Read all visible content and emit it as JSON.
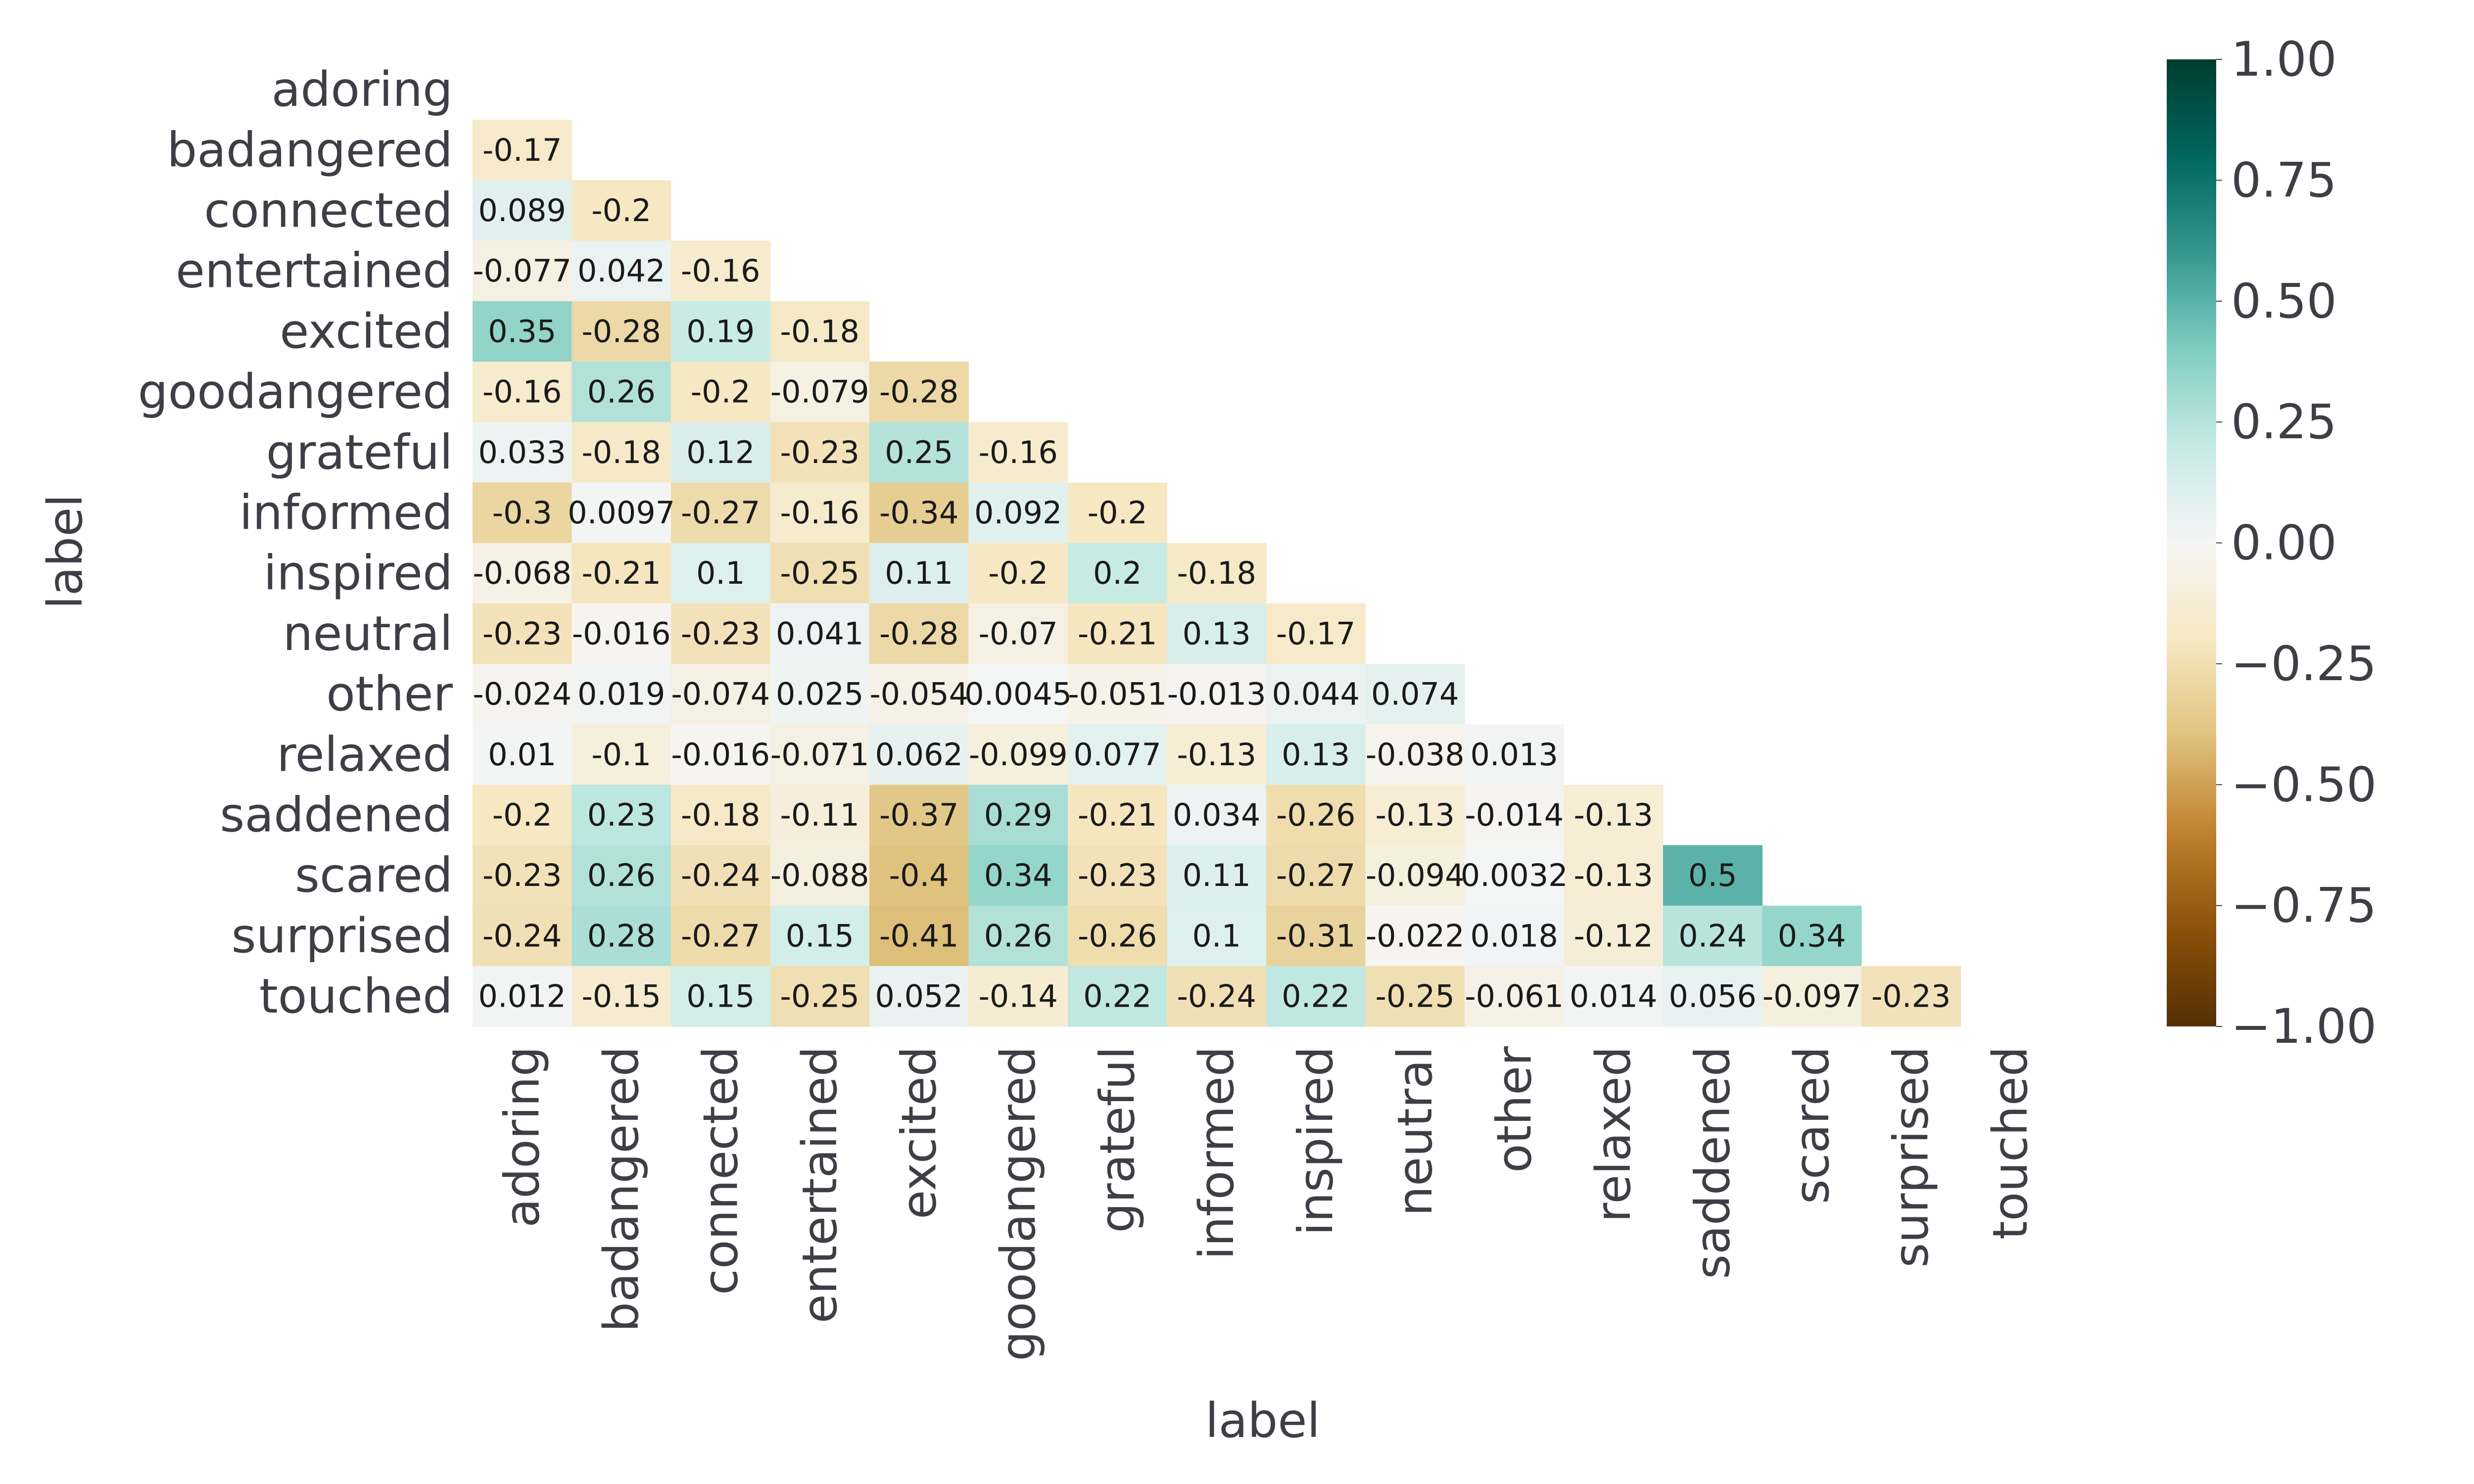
{
  "chart_data": {
    "type": "heatmap",
    "title": "",
    "xlabel": "label",
    "ylabel": "label",
    "labels": [
      "adoring",
      "badangered",
      "connected",
      "entertained",
      "excited",
      "goodangered",
      "grateful",
      "informed",
      "inspired",
      "neutral",
      "other",
      "relaxed",
      "saddened",
      "scared",
      "surprised",
      "touched"
    ],
    "mask": "upper-triangle-and-diagonal",
    "values": [
      [],
      [
        "-0.17"
      ],
      [
        "0.089",
        "-0.2"
      ],
      [
        "-0.077",
        "0.042",
        "-0.16"
      ],
      [
        "0.35",
        "-0.28",
        "0.19",
        "-0.18"
      ],
      [
        "-0.16",
        "0.26",
        "-0.2",
        "-0.079",
        "-0.28"
      ],
      [
        "0.033",
        "-0.18",
        "0.12",
        "-0.23",
        "0.25",
        "-0.16"
      ],
      [
        "-0.3",
        "0.0097",
        "-0.27",
        "-0.16",
        "-0.34",
        "0.092",
        "-0.2"
      ],
      [
        "-0.068",
        "-0.21",
        "0.1",
        "-0.25",
        "0.11",
        "-0.2",
        "0.2",
        "-0.18"
      ],
      [
        "-0.23",
        "-0.016",
        "-0.23",
        "0.041",
        "-0.28",
        "-0.07",
        "-0.21",
        "0.13",
        "-0.17"
      ],
      [
        "-0.024",
        "0.019",
        "-0.074",
        "0.025",
        "-0.054",
        "0.0045",
        "-0.051",
        "-0.013",
        "0.044",
        "0.074"
      ],
      [
        "0.01",
        "-0.1",
        "-0.016",
        "-0.071",
        "0.062",
        "-0.099",
        "0.077",
        "-0.13",
        "0.13",
        "-0.038",
        "0.013"
      ],
      [
        "-0.2",
        "0.23",
        "-0.18",
        "-0.11",
        "-0.37",
        "0.29",
        "-0.21",
        "0.034",
        "-0.26",
        "-0.13",
        "-0.014",
        "-0.13"
      ],
      [
        "-0.23",
        "0.26",
        "-0.24",
        "-0.088",
        "-0.4",
        "0.34",
        "-0.23",
        "0.11",
        "-0.27",
        "-0.094",
        "0.0032",
        "-0.13",
        "0.5"
      ],
      [
        "-0.24",
        "0.28",
        "-0.27",
        "0.15",
        "-0.41",
        "0.26",
        "-0.26",
        "0.1",
        "-0.31",
        "-0.022",
        "0.018",
        "-0.12",
        "0.24",
        "0.34"
      ],
      [
        "0.012",
        "-0.15",
        "0.15",
        "-0.25",
        "0.052",
        "-0.14",
        "0.22",
        "-0.24",
        "0.22",
        "-0.25",
        "-0.061",
        "0.014",
        "0.056",
        "-0.097",
        "-0.23"
      ]
    ],
    "colorbar": {
      "vmin": -1.0,
      "vmax": 1.0,
      "ticks": [
        1.0,
        0.75,
        0.5,
        0.25,
        0.0,
        -0.25,
        -0.5,
        -0.75,
        -1.0
      ],
      "tick_labels": [
        "1.00",
        "0.75",
        "0.50",
        "0.25",
        "0.00",
        "−0.25",
        "−0.50",
        "−0.75",
        "−1.00"
      ],
      "colormap": "BrBG",
      "colormap_stops": [
        "#543005",
        "#8c510a",
        "#bf812d",
        "#dfc27d",
        "#f6e8c3",
        "#f5f5f5",
        "#c7eae5",
        "#80cdc1",
        "#35978f",
        "#01665e",
        "#003c30"
      ]
    },
    "grid": false,
    "legend": "colorbar-right"
  }
}
